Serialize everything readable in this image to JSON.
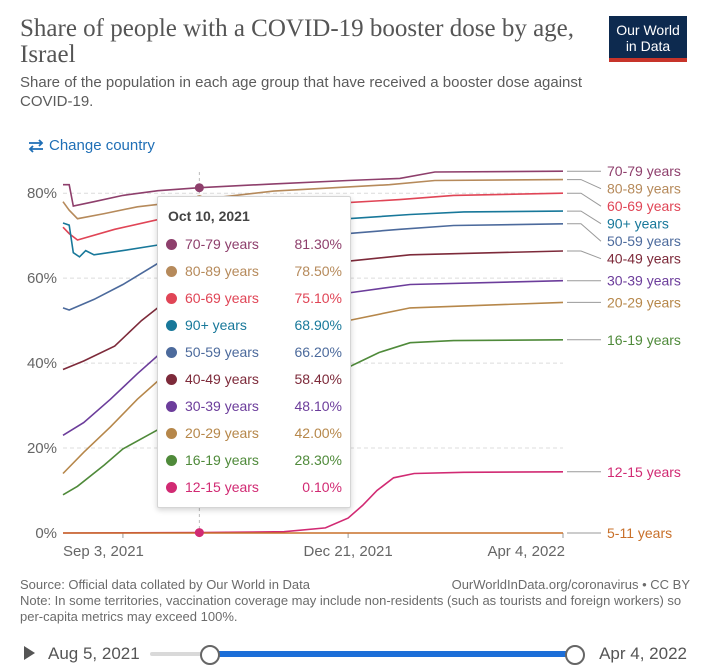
{
  "header": {
    "title": "Share of people with a COVID-19 booster dose by age, Israel",
    "subtitle": "Share of the population in each age group that have received a booster dose against COVID-19.",
    "logo_line1": "Our World",
    "logo_line2": "in Data",
    "change_country": "Change country"
  },
  "tooltip": {
    "date": "Oct 10, 2021",
    "rows": [
      {
        "name": "70-79 years",
        "value": "81.30%",
        "color": "#8e3f6c"
      },
      {
        "name": "80-89 years",
        "value": "78.50%",
        "color": "#b68a5b"
      },
      {
        "name": "60-69 years",
        "value": "75.10%",
        "color": "#e04556"
      },
      {
        "name": "90+ years",
        "value": "68.90%",
        "color": "#18789a"
      },
      {
        "name": "50-59 years",
        "value": "66.20%",
        "color": "#4c6a9c"
      },
      {
        "name": "40-49 years",
        "value": "58.40%",
        "color": "#7d2a3a"
      },
      {
        "name": "30-39 years",
        "value": "48.10%",
        "color": "#6c3d9b"
      },
      {
        "name": "20-29 years",
        "value": "42.00%",
        "color": "#b6874a"
      },
      {
        "name": "16-19 years",
        "value": "28.30%",
        "color": "#4f8a3a"
      },
      {
        "name": "12-15 years",
        "value": "0.10%",
        "color": "#d12a73"
      }
    ]
  },
  "footer": {
    "source": "Source: Official data collated by Our World in Data",
    "url": "OurWorldInData.org/coronavirus • CC BY",
    "note": "Note: In some territories, vaccination coverage may include non-residents (such as tourists and foreign workers) so per-capita metrics may exceed 100%."
  },
  "timeline": {
    "start_label": "Aug 5, 2021",
    "end_label": "Apr 4, 2022",
    "start_fraction": 0.14,
    "end_fraction": 1.0
  },
  "chart_data": {
    "type": "line",
    "title": "Share of people with a COVID-19 booster dose by age, Israel",
    "ylim": [
      0,
      85
    ],
    "yticks": [
      0,
      20,
      40,
      60,
      80
    ],
    "ytick_labels": [
      "0%",
      "20%",
      "40%",
      "60%",
      "80%"
    ],
    "xlim": [
      "2021-08-05",
      "2022-04-04"
    ],
    "xticks": [
      "2021-09-03",
      "2021-12-21",
      "2022-04-04"
    ],
    "xtick_labels": [
      "Sep 3, 2021",
      "Dec 21, 2021",
      "Apr 4, 2022"
    ],
    "grid": true,
    "hover_date": "2021-10-10",
    "series": [
      {
        "name": "70-79 years",
        "color": "#8e3f6c",
        "points": [
          [
            "2021-08-05",
            82
          ],
          [
            "2021-08-08",
            82
          ],
          [
            "2021-08-10",
            77
          ],
          [
            "2021-08-20",
            78
          ],
          [
            "2021-09-03",
            79.5
          ],
          [
            "2021-09-20",
            80.6
          ],
          [
            "2021-10-10",
            81.3
          ],
          [
            "2021-11-15",
            82.2
          ],
          [
            "2021-12-21",
            83
          ],
          [
            "2022-01-15",
            83.5
          ],
          [
            "2022-02-01",
            85
          ],
          [
            "2022-04-04",
            85.2
          ]
        ]
      },
      {
        "name": "80-89 years",
        "color": "#b68a5b",
        "points": [
          [
            "2021-08-05",
            78
          ],
          [
            "2021-08-08",
            76
          ],
          [
            "2021-08-12",
            74
          ],
          [
            "2021-08-25",
            75.2
          ],
          [
            "2021-09-10",
            76.8
          ],
          [
            "2021-10-10",
            78.5
          ],
          [
            "2021-11-15",
            80.5
          ],
          [
            "2021-12-21",
            81.5
          ],
          [
            "2022-01-10",
            82
          ],
          [
            "2022-02-01",
            83
          ],
          [
            "2022-04-04",
            83.2
          ]
        ]
      },
      {
        "name": "60-69 years",
        "color": "#e04556",
        "points": [
          [
            "2021-08-05",
            72
          ],
          [
            "2021-08-08",
            70.5
          ],
          [
            "2021-08-12",
            69
          ],
          [
            "2021-08-30",
            71.5
          ],
          [
            "2021-09-20",
            73.8
          ],
          [
            "2021-10-10",
            75.1
          ],
          [
            "2021-11-15",
            77
          ],
          [
            "2021-12-21",
            77.8
          ],
          [
            "2022-01-15",
            78.5
          ],
          [
            "2022-02-10",
            79.5
          ],
          [
            "2022-04-04",
            80
          ]
        ]
      },
      {
        "name": "90+ years",
        "color": "#18789a",
        "points": [
          [
            "2021-08-05",
            73
          ],
          [
            "2021-08-08",
            72.5
          ],
          [
            "2021-08-10",
            66
          ],
          [
            "2021-08-13",
            65
          ],
          [
            "2021-08-16",
            66.5
          ],
          [
            "2021-08-20",
            65.5
          ],
          [
            "2021-09-03",
            66.5
          ],
          [
            "2021-09-20",
            67.8
          ],
          [
            "2021-10-10",
            68.9
          ],
          [
            "2021-11-15",
            72
          ],
          [
            "2021-12-21",
            74
          ],
          [
            "2022-01-20",
            75
          ],
          [
            "2022-02-15",
            75.6
          ],
          [
            "2022-04-04",
            75.8
          ]
        ]
      },
      {
        "name": "50-59 years",
        "color": "#4c6a9c",
        "points": [
          [
            "2021-08-05",
            53
          ],
          [
            "2021-08-08",
            52.5
          ],
          [
            "2021-08-20",
            55
          ],
          [
            "2021-09-03",
            58.5
          ],
          [
            "2021-09-20",
            63.5
          ],
          [
            "2021-10-10",
            66.2
          ],
          [
            "2021-11-15",
            69.5
          ],
          [
            "2021-12-21",
            70.5
          ],
          [
            "2022-01-15",
            71.5
          ],
          [
            "2022-02-10",
            72.4
          ],
          [
            "2022-04-04",
            72.8
          ]
        ]
      },
      {
        "name": "40-49 years",
        "color": "#7d2a3a",
        "points": [
          [
            "2021-08-05",
            38.5
          ],
          [
            "2021-08-15",
            40.5
          ],
          [
            "2021-08-30",
            44
          ],
          [
            "2021-09-12",
            50
          ],
          [
            "2021-09-25",
            55
          ],
          [
            "2021-10-10",
            58.4
          ],
          [
            "2021-11-01",
            61.5
          ],
          [
            "2021-12-01",
            63.5
          ],
          [
            "2021-12-21",
            64
          ],
          [
            "2022-01-20",
            65.5
          ],
          [
            "2022-04-04",
            66.4
          ]
        ]
      },
      {
        "name": "30-39 years",
        "color": "#6c3d9b",
        "points": [
          [
            "2021-08-05",
            23
          ],
          [
            "2021-08-15",
            26
          ],
          [
            "2021-08-28",
            31.5
          ],
          [
            "2021-09-10",
            37.5
          ],
          [
            "2021-09-25",
            44
          ],
          [
            "2021-10-10",
            48.1
          ],
          [
            "2021-11-01",
            52.5
          ],
          [
            "2021-12-01",
            55.5
          ],
          [
            "2021-12-21",
            56.5
          ],
          [
            "2022-01-20",
            58.5
          ],
          [
            "2022-04-04",
            59.4
          ]
        ]
      },
      {
        "name": "20-29 years",
        "color": "#b6874a",
        "points": [
          [
            "2021-08-05",
            14
          ],
          [
            "2021-08-15",
            19
          ],
          [
            "2021-08-28",
            25
          ],
          [
            "2021-09-10",
            31.5
          ],
          [
            "2021-09-25",
            38
          ],
          [
            "2021-10-10",
            42
          ],
          [
            "2021-11-01",
            46
          ],
          [
            "2021-12-01",
            48.5
          ],
          [
            "2021-12-21",
            50
          ],
          [
            "2022-01-20",
            53
          ],
          [
            "2022-04-04",
            54.3
          ]
        ]
      },
      {
        "name": "16-19 years",
        "color": "#4f8a3a",
        "points": [
          [
            "2021-08-05",
            9
          ],
          [
            "2021-08-12",
            11
          ],
          [
            "2021-08-25",
            16
          ],
          [
            "2021-09-03",
            19.8
          ],
          [
            "2021-09-15",
            23
          ],
          [
            "2021-09-28",
            26.5
          ],
          [
            "2021-10-10",
            28.3
          ],
          [
            "2021-11-01",
            31
          ],
          [
            "2021-12-01",
            35.5
          ],
          [
            "2021-12-21",
            39
          ],
          [
            "2022-01-05",
            42.5
          ],
          [
            "2022-01-20",
            44.8
          ],
          [
            "2022-02-10",
            45.3
          ],
          [
            "2022-04-04",
            45.5
          ]
        ]
      },
      {
        "name": "12-15 years",
        "color": "#d12a73",
        "points": [
          [
            "2021-08-05",
            0
          ],
          [
            "2021-10-10",
            0.1
          ],
          [
            "2021-11-20",
            0.3
          ],
          [
            "2021-12-10",
            1.2
          ],
          [
            "2021-12-21",
            3.5
          ],
          [
            "2021-12-28",
            6.5
          ],
          [
            "2022-01-04",
            10
          ],
          [
            "2022-01-12",
            13
          ],
          [
            "2022-01-22",
            14
          ],
          [
            "2022-02-15",
            14.3
          ],
          [
            "2022-04-04",
            14.4
          ]
        ]
      },
      {
        "name": "5-11 years",
        "color": "#c8702a",
        "points": [
          [
            "2021-08-05",
            0
          ],
          [
            "2022-04-04",
            0
          ]
        ]
      }
    ],
    "end_labels": [
      {
        "name": "70-79 years",
        "color": "#8e3f6c"
      },
      {
        "name": "80-89 years",
        "color": "#b68a5b"
      },
      {
        "name": "60-69 years",
        "color": "#e04556"
      },
      {
        "name": "90+ years",
        "color": "#18789a"
      },
      {
        "name": "50-59 years",
        "color": "#4c6a9c"
      },
      {
        "name": "40-49 years",
        "color": "#7d2a3a"
      },
      {
        "name": "30-39 years",
        "color": "#6c3d9b"
      },
      {
        "name": "20-29 years",
        "color": "#b6874a"
      },
      {
        "name": "16-19 years",
        "color": "#4f8a3a"
      },
      {
        "name": "12-15 years",
        "color": "#d12a73"
      },
      {
        "name": "5-11 years",
        "color": "#c8702a"
      }
    ]
  }
}
